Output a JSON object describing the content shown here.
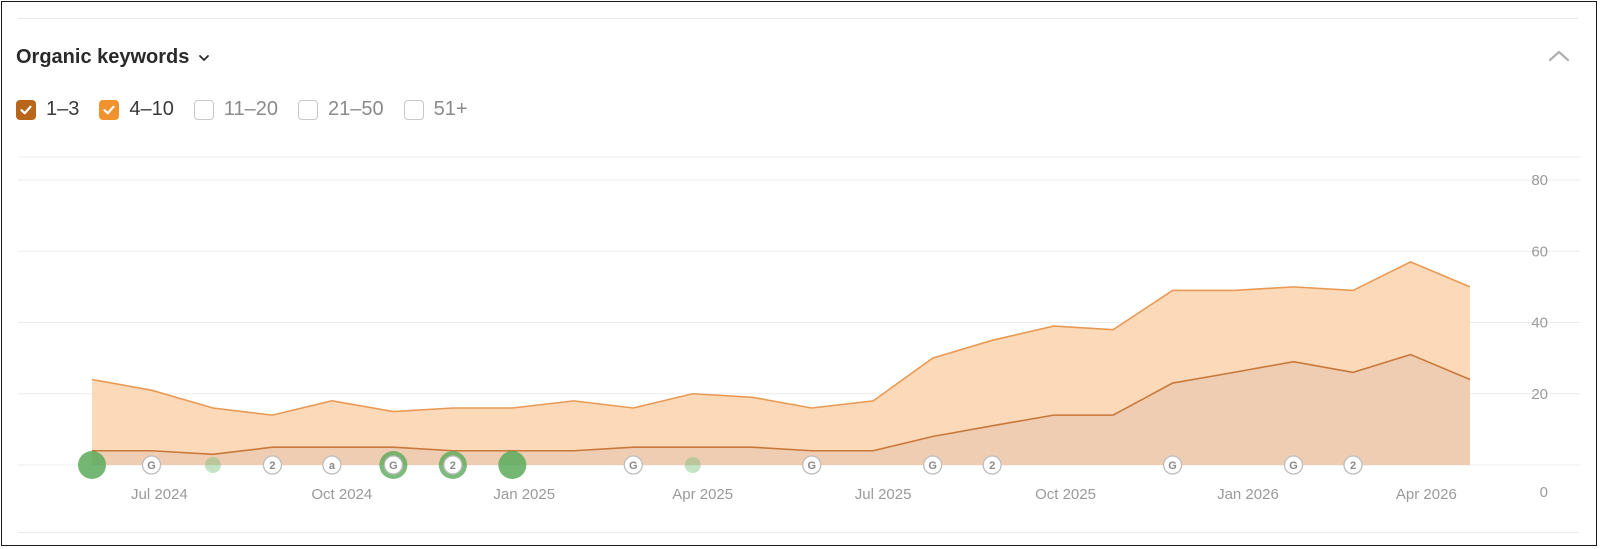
{
  "widget": {
    "title": "Organic keywords",
    "legend": [
      {
        "label": "1–3",
        "checked": true,
        "color": "#b8661a"
      },
      {
        "label": "4–10",
        "checked": true,
        "color": "#f0922e"
      },
      {
        "label": "11–20",
        "checked": false,
        "color": "#c8c8c8"
      },
      {
        "label": "21–50",
        "checked": false,
        "color": "#c8c8c8"
      },
      {
        "label": "51+",
        "checked": false,
        "color": "#c8c8c8"
      }
    ]
  },
  "chart_data": {
    "type": "area",
    "stacked": true,
    "title": "",
    "xlabel": "",
    "ylabel": "",
    "y_axis_position": "right",
    "ylim": [
      0,
      80
    ],
    "y_ticks": [
      "0",
      "20",
      "40",
      "60",
      "80"
    ],
    "xlim": [
      "2024-04-22",
      "2026-04-30"
    ],
    "x_ticks": [
      {
        "label": "Jul 2024",
        "date": "2024-07-01"
      },
      {
        "label": "Oct 2024",
        "date": "2024-10-01"
      },
      {
        "label": "Jan 2025",
        "date": "2025-01-01"
      },
      {
        "label": "Apr 2025",
        "date": "2025-04-01"
      },
      {
        "label": "Jul 2025",
        "date": "2025-07-01"
      },
      {
        "label": "Oct 2025",
        "date": "2025-10-01"
      },
      {
        "label": "Jan 2026",
        "date": "2026-01-01"
      },
      {
        "label": "Apr 2026",
        "date": "2026-04-01"
      }
    ],
    "x": [
      "2024-05-28",
      "2024-06-27",
      "2024-07-28",
      "2024-08-27",
      "2024-09-26",
      "2024-10-27",
      "2024-11-26",
      "2024-12-26",
      "2025-01-26",
      "2025-02-25",
      "2025-03-27",
      "2025-04-26",
      "2025-05-26",
      "2025-06-26",
      "2025-07-26",
      "2025-08-25",
      "2025-09-25",
      "2025-10-25",
      "2025-11-24",
      "2025-12-25",
      "2026-01-24",
      "2026-02-23",
      "2026-03-24",
      "2026-04-23"
    ],
    "series": [
      {
        "color": "#c9783a",
        "values": [
          4,
          4,
          3,
          5,
          5,
          5,
          4,
          4,
          4,
          5,
          5,
          5,
          4,
          4,
          8,
          11,
          14,
          14,
          23,
          26,
          29,
          26,
          31,
          24
        ]
      },
      {
        "color": "#f0922e",
        "values": [
          20,
          17,
          13,
          9,
          13,
          10,
          12,
          12,
          14,
          11,
          15,
          14,
          12,
          14,
          22,
          24,
          25,
          24,
          26,
          23,
          21,
          23,
          26,
          26
        ]
      }
    ],
    "grid": true,
    "event_markers": [
      {
        "date": "2024-05-28",
        "kind": "dot",
        "size": "large",
        "color": "#5aaa5a",
        "opacity": 0.85
      },
      {
        "date": "2024-06-27",
        "kind": "badge",
        "text": "G"
      },
      {
        "date": "2024-07-28",
        "kind": "dot",
        "size": "small",
        "color": "#7cc27c",
        "opacity": 0.45
      },
      {
        "date": "2024-08-27",
        "kind": "badge",
        "text": "2"
      },
      {
        "date": "2024-09-26",
        "kind": "badge",
        "text": "a"
      },
      {
        "date": "2024-10-27",
        "kind": "badge",
        "text": "G",
        "halo": true
      },
      {
        "date": "2024-11-26",
        "kind": "badge",
        "text": "2",
        "halo": true
      },
      {
        "date": "2024-12-26",
        "kind": "dot",
        "size": "large",
        "color": "#5aaa5a",
        "opacity": 0.85
      },
      {
        "date": "2025-02-25",
        "kind": "badge",
        "text": "G"
      },
      {
        "date": "2025-03-27",
        "kind": "dot",
        "size": "small",
        "color": "#7cc27c",
        "opacity": 0.45
      },
      {
        "date": "2025-05-26",
        "kind": "badge",
        "text": "G"
      },
      {
        "date": "2025-07-26",
        "kind": "badge",
        "text": "G"
      },
      {
        "date": "2025-08-25",
        "kind": "badge",
        "text": "2"
      },
      {
        "date": "2025-11-24",
        "kind": "badge",
        "text": "G"
      },
      {
        "date": "2026-01-24",
        "kind": "badge",
        "text": "G"
      },
      {
        "date": "2026-02-23",
        "kind": "badge",
        "text": "2"
      }
    ]
  }
}
